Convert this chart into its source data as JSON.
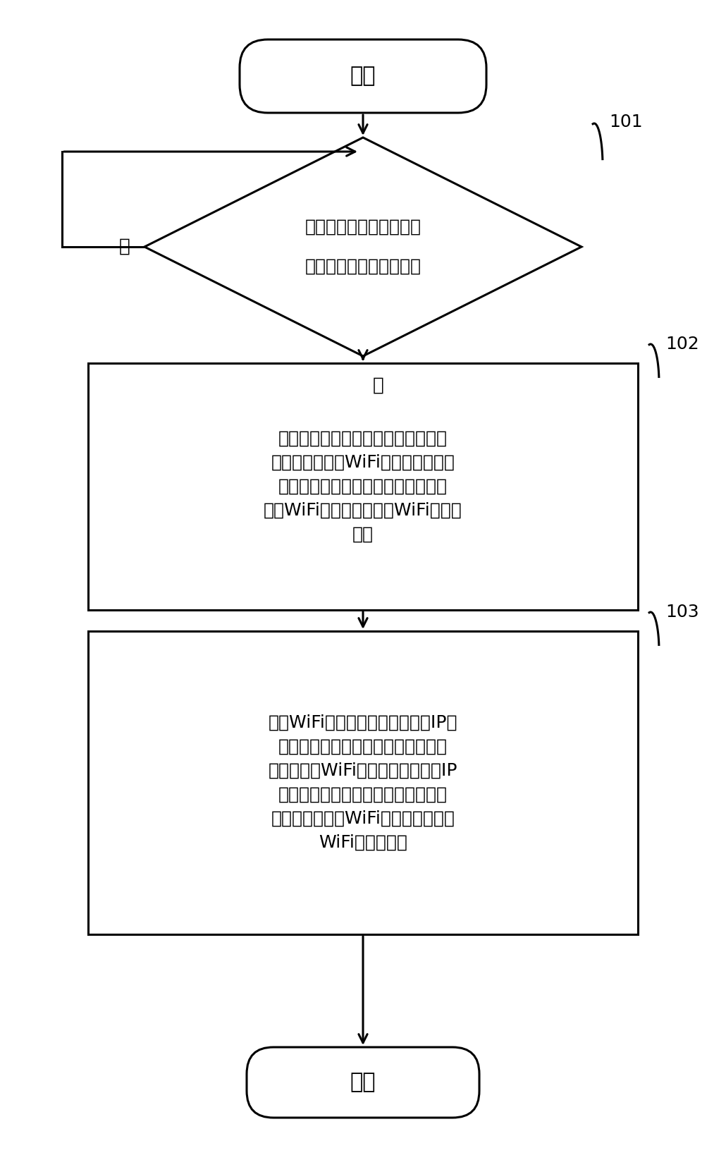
{
  "bg_color": "#ffffff",
  "line_color": "#000000",
  "text_color": "#000000",
  "start_label": "开始",
  "end_label": "结束",
  "diamond_line1": "监测当前网络通信数据包",
  "diamond_line2": "中是否有四次握手包出现",
  "diamond_no_label": "否",
  "diamond_yes_label": "是",
  "box1_lines": [
    "判断该四次握手包中的握手信息是否",
    "与最近一次接入WiFi网络时所使用的",
    "握手信息一致，如果不一致，则判定",
    "当前WiFi网络存在属于伪WiFi网络的",
    "风险"
  ],
  "box2_lines": [
    "接入WiFi网络后，获取到达指定IP地",
    "址的第一路由，判断该第一路由与最",
    "近一次接入WiFi网络时到达该指定IP",
    "地址的第二路由是否一致，如果不一",
    "致，则判定当前WiFi网络存在属于伪",
    "WiFi网络的风险"
  ],
  "label_101": "101",
  "label_102": "102",
  "label_103": "103",
  "font_size_main": 22,
  "font_size_box": 19,
  "font_size_ref": 18
}
